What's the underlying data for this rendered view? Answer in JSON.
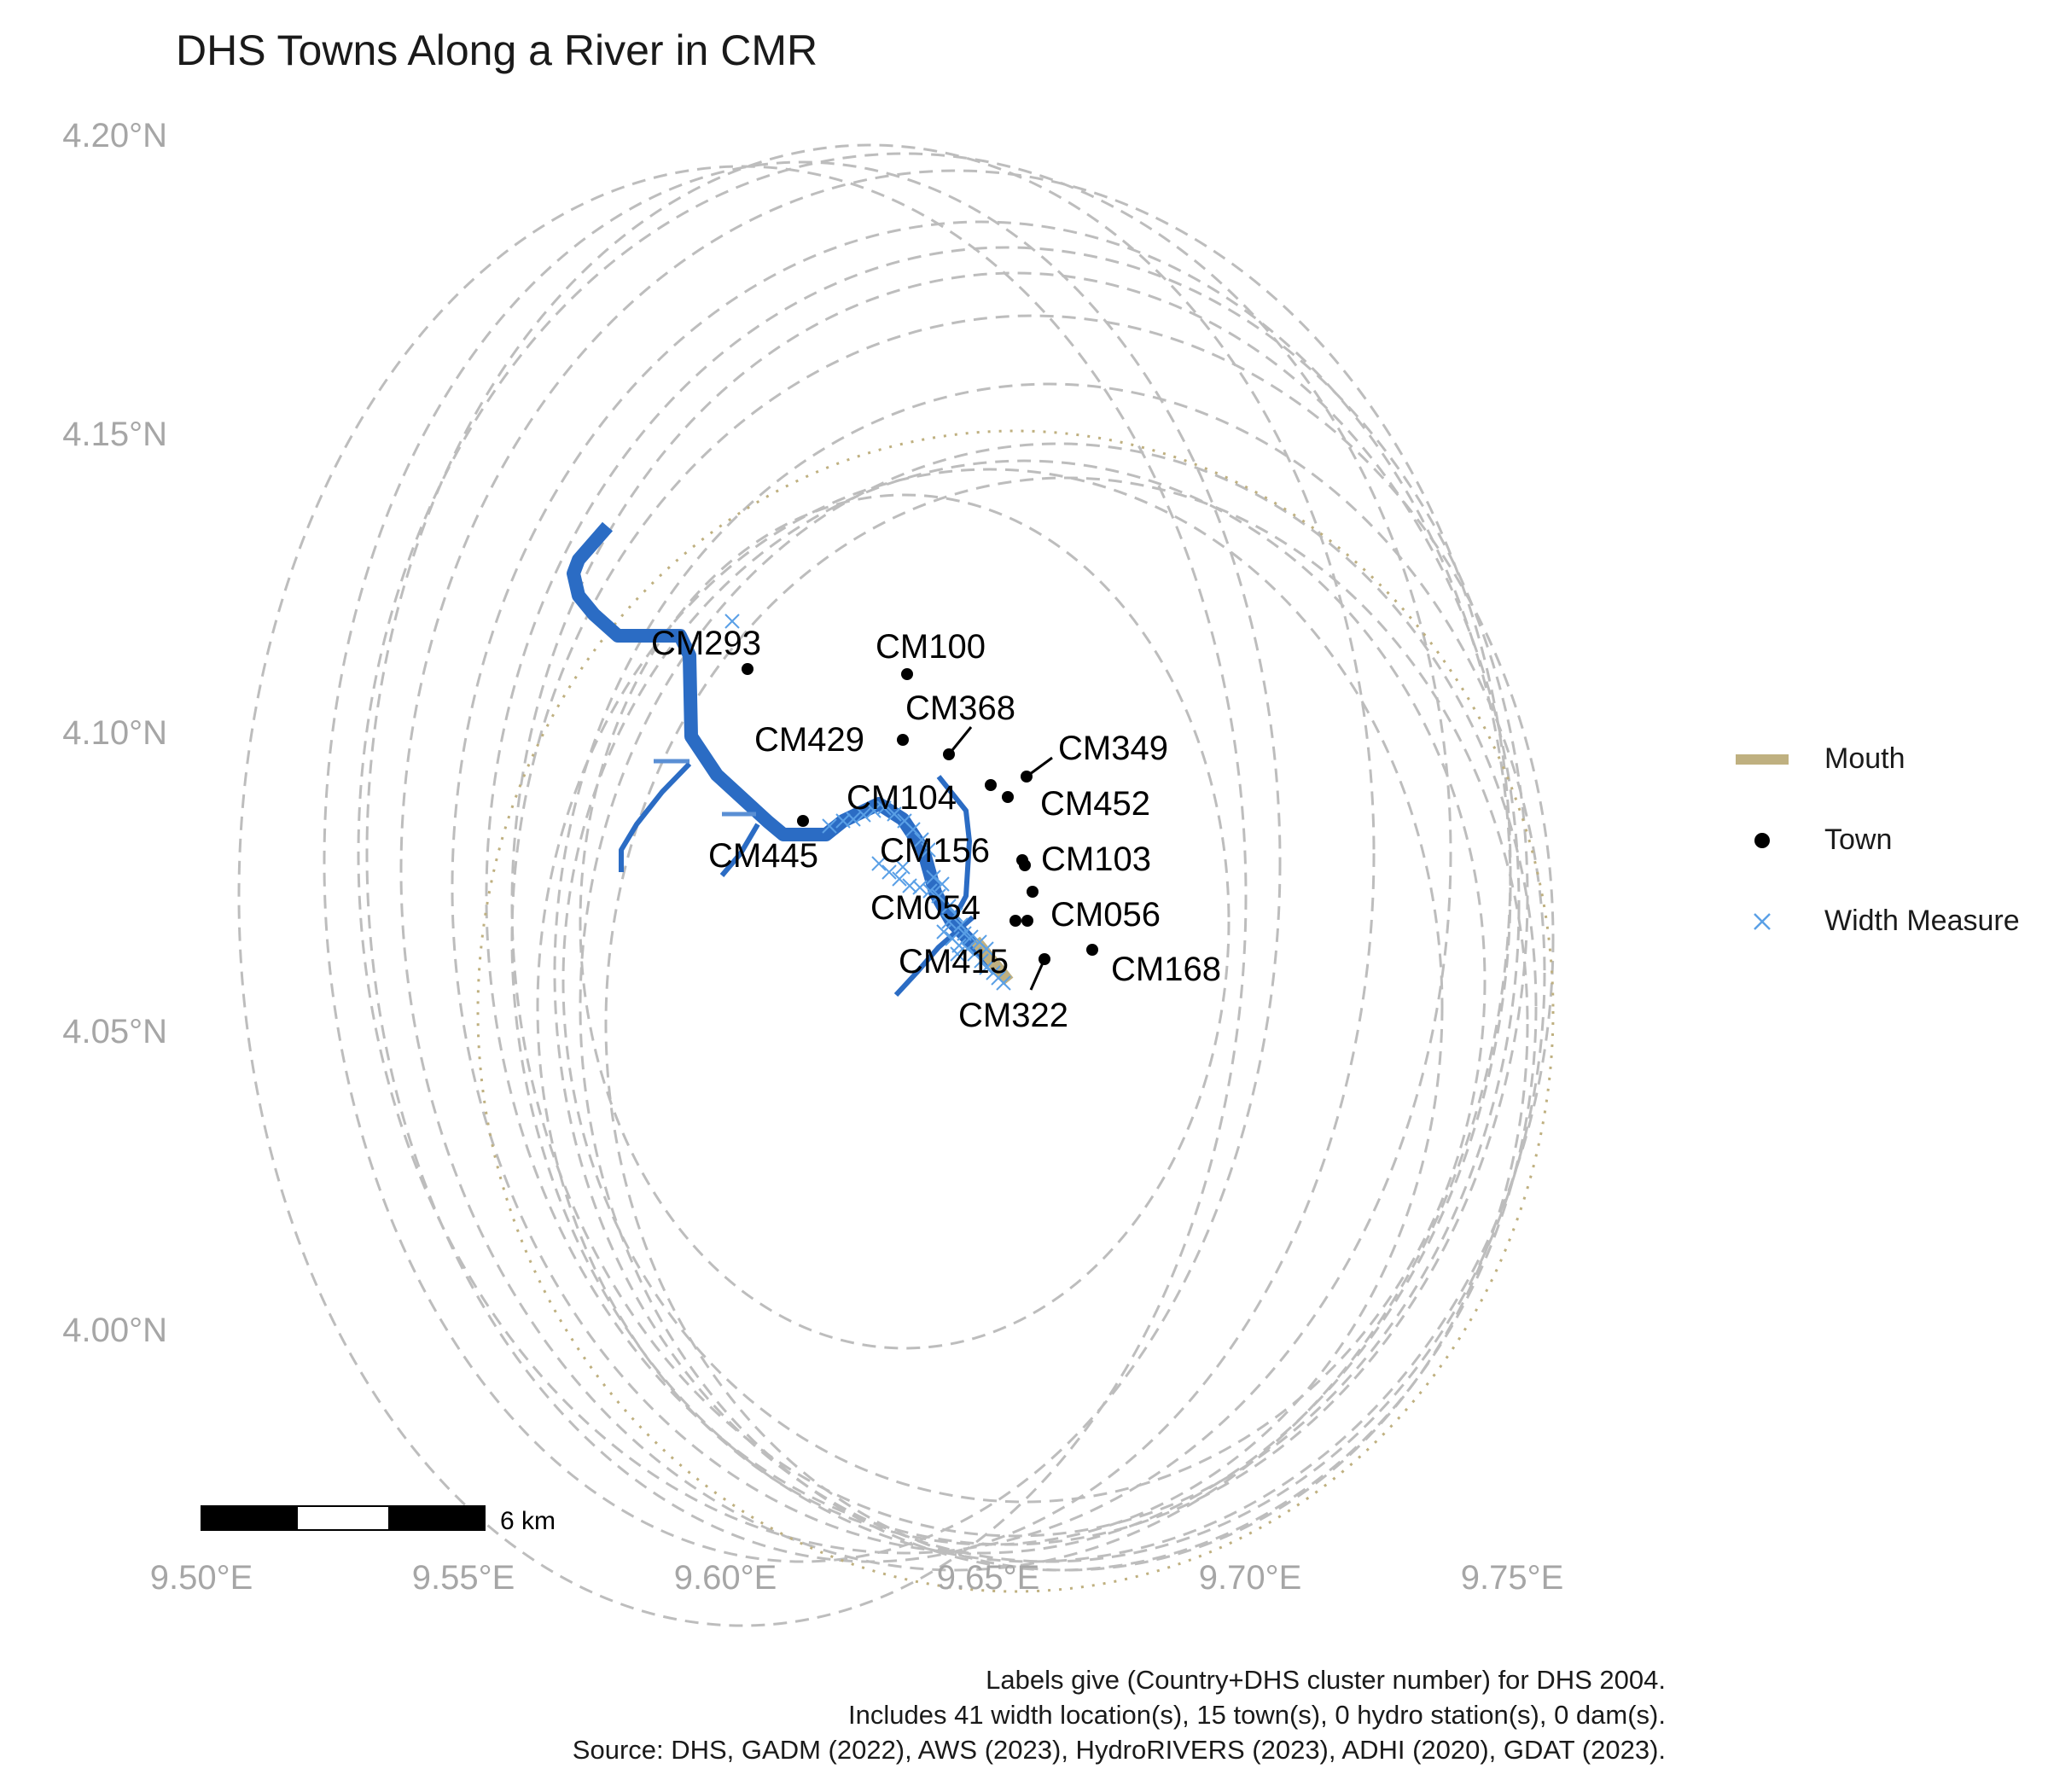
{
  "title": "DHS Towns Along a River in CMR",
  "axes": {
    "x_ticks": [
      "9.50°E",
      "9.55°E",
      "9.60°E",
      "9.65°E",
      "9.70°E",
      "9.75°E"
    ],
    "y_ticks": [
      "4.20°N",
      "4.15°N",
      "4.10°N",
      "4.05°N",
      "4.00°N"
    ]
  },
  "colors": {
    "river": "#2b6cc4",
    "mouth": "#bfb080",
    "town": "#000000",
    "width_measure": "#5aa0e6",
    "buffer": "#bdbdbd",
    "axis_text": "#a6a6a6"
  },
  "legend": {
    "items": [
      {
        "label": "Mouth",
        "key": "line"
      },
      {
        "label": "Town",
        "key": "point"
      },
      {
        "label": "Width Measure",
        "key": "cross"
      }
    ]
  },
  "scale_bar": {
    "label": "6 km"
  },
  "towns": [
    {
      "id": "CM293",
      "lon": 9.604,
      "lat": 4.11
    },
    {
      "id": "CM100",
      "lon": 9.635,
      "lat": 4.109
    },
    {
      "id": "CM368",
      "lon": 9.642,
      "lat": 4.096
    },
    {
      "id": "CM429",
      "lon": 9.634,
      "lat": 4.098
    },
    {
      "id": "CM349",
      "lon": 9.657,
      "lat": 4.092
    },
    {
      "id": "CM452",
      "lon": 9.654,
      "lat": 4.088
    },
    {
      "id": "CM104",
      "lon": 9.615,
      "lat": 4.085
    },
    {
      "id": "CM445",
      "lon": 9.615,
      "lat": 4.085
    },
    {
      "id": "CM156",
      "lon": 9.651,
      "lat": 4.09
    },
    {
      "id": "CM103",
      "lon": 9.657,
      "lat": 4.079
    },
    {
      "id": "CM054",
      "lon": 9.655,
      "lat": 4.068
    },
    {
      "id": "CM056",
      "lon": 9.658,
      "lat": 4.074
    },
    {
      "id": "CM415",
      "lon": 9.657,
      "lat": 4.068
    },
    {
      "id": "CM168",
      "lon": 9.669,
      "lat": 4.064
    },
    {
      "id": "CM322",
      "lon": 9.66,
      "lat": 4.062
    }
  ],
  "caption": {
    "line1": "Labels give (Country+DHS cluster number) for DHS 2004.",
    "line2": "Includes 41 width location(s), 15 town(s), 0 hydro station(s), 0 dam(s).",
    "line3": "Source: DHS, GADM (2022), AWS (2023), HydroRIVERS (2023), ADHI (2020), GDAT (2023)."
  }
}
